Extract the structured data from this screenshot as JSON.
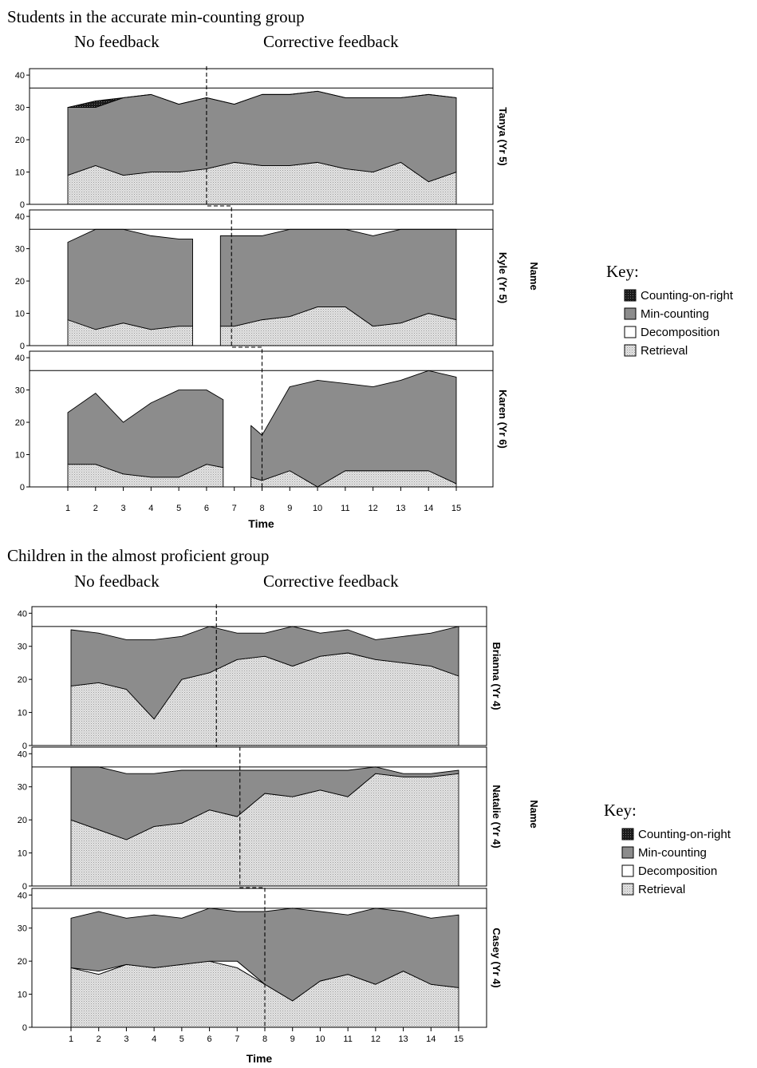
{
  "colors": {
    "counting_on_right": "#1a1a1a",
    "min_counting": "#8c8c8c",
    "decomposition": "#ffffff",
    "retrieval": "#e4e4e4",
    "line": "#000000"
  },
  "chart_data": [
    {
      "type": "area",
      "title": "Students in the accurate min-counting group",
      "phase_labels": [
        "No feedback",
        "Corrective feedback"
      ],
      "xlabel": "Time",
      "facet_label": "Name",
      "x_ticks": [
        1,
        2,
        3,
        4,
        5,
        6,
        7,
        8,
        9,
        10,
        11,
        12,
        13,
        14,
        15
      ],
      "y_ticks": [
        0,
        10,
        20,
        30,
        40
      ],
      "ylim": [
        0,
        42
      ],
      "reference_line": 36,
      "legend_title": "Key:",
      "legend": [
        "Counting-on-right",
        "Min-counting",
        "Decomposition",
        "Retrieval"
      ],
      "panels": [
        {
          "name": "Tanya (Yr 5)",
          "x": [
            1,
            2,
            3,
            4,
            5,
            6,
            7,
            8,
            9,
            10,
            11,
            12,
            13,
            14,
            15
          ],
          "retrieval": [
            9,
            12,
            9,
            10,
            10,
            11,
            13,
            12,
            12,
            13,
            11,
            10,
            13,
            7,
            10
          ],
          "decomposition": [
            0,
            0,
            0,
            0,
            0,
            0,
            0,
            0,
            0,
            0,
            0,
            0,
            0,
            0,
            0
          ],
          "min_counting": [
            21,
            18,
            24,
            24,
            21,
            22,
            18,
            22,
            22,
            22,
            22,
            23,
            20,
            27,
            23
          ],
          "counting_on_right": [
            0,
            2,
            0,
            0,
            0,
            0,
            0,
            0,
            0,
            0,
            0,
            0,
            0,
            0,
            0
          ],
          "phase_change_x": 6.0
        },
        {
          "name": "Kyle (Yr 5)",
          "segments": [
            {
              "x": [
                1,
                2,
                3,
                4,
                5,
                5.5
              ],
              "retrieval": [
                8,
                5,
                7,
                5,
                6,
                6
              ],
              "min_counting": [
                24,
                31,
                29,
                29,
                27,
                27
              ]
            },
            {
              "x": [
                6.5,
                7,
                8,
                9,
                10,
                11,
                12,
                13,
                14,
                15
              ],
              "retrieval": [
                6,
                6,
                8,
                9,
                12,
                12,
                6,
                7,
                10,
                8
              ],
              "min_counting": [
                28,
                28,
                26,
                27,
                24,
                24,
                28,
                29,
                26,
                28
              ]
            }
          ],
          "phase_change_x": 6.9
        },
        {
          "name": "Karen (Yr 6)",
          "segments": [
            {
              "x": [
                1,
                2,
                3,
                4,
                5,
                6,
                6.6
              ],
              "retrieval": [
                7,
                7,
                4,
                3,
                3,
                7,
                6
              ],
              "min_counting": [
                16,
                22,
                16,
                23,
                27,
                23,
                21
              ]
            },
            {
              "x": [
                7.6,
                8,
                9,
                10,
                11,
                12,
                13,
                14,
                15
              ],
              "retrieval": [
                3,
                2,
                5,
                0,
                5,
                5,
                5,
                5,
                1
              ],
              "min_counting": [
                16,
                14,
                26,
                33,
                27,
                26,
                28,
                31,
                33
              ]
            }
          ],
          "phase_change_x": 8.0
        }
      ]
    },
    {
      "type": "area",
      "title": "Children in the almost proficient group",
      "phase_labels": [
        "No feedback",
        "Corrective feedback"
      ],
      "xlabel": "Time",
      "facet_label": "Name",
      "x_ticks": [
        1,
        2,
        3,
        4,
        5,
        6,
        7,
        8,
        9,
        10,
        11,
        12,
        13,
        14,
        15
      ],
      "y_ticks": [
        0,
        10,
        20,
        30,
        40
      ],
      "ylim": [
        0,
        42
      ],
      "reference_line": 36,
      "legend_title": "Key:",
      "legend": [
        "Counting-on-right",
        "Min-counting",
        "Decomposition",
        "Retrieval"
      ],
      "panels": [
        {
          "name": "Brianna (Yr 4)",
          "x": [
            1,
            2,
            3,
            4,
            5,
            6,
            7,
            8,
            9,
            10,
            11,
            12,
            13,
            14,
            15
          ],
          "retrieval": [
            18,
            19,
            17,
            8,
            20,
            22,
            26,
            27,
            24,
            27,
            28,
            26,
            25,
            24,
            21
          ],
          "decomposition": [
            0,
            0,
            0,
            0,
            0,
            0,
            0,
            0,
            0,
            0,
            0,
            0,
            0,
            0,
            0
          ],
          "min_counting": [
            17,
            15,
            15,
            24,
            13,
            14,
            8,
            7,
            12,
            7,
            7,
            6,
            8,
            10,
            15
          ],
          "counting_on_right": [
            0,
            0,
            0,
            0,
            0,
            0,
            0,
            0,
            0,
            0,
            0,
            0,
            0,
            0,
            0
          ],
          "phase_change_x": 6.25
        },
        {
          "name": "Natalie (Yr 4)",
          "x": [
            1,
            2,
            3,
            4,
            5,
            6,
            7,
            8,
            9,
            10,
            11,
            12,
            13,
            14,
            15
          ],
          "retrieval": [
            20,
            17,
            14,
            18,
            19,
            23,
            21,
            28,
            27,
            29,
            27,
            34,
            33,
            33,
            34
          ],
          "decomposition": [
            0,
            0,
            0,
            0,
            0,
            0,
            0,
            0,
            0,
            0,
            0,
            0,
            0,
            0,
            0
          ],
          "min_counting": [
            16,
            19,
            20,
            16,
            16,
            12,
            14,
            7,
            8,
            6,
            8,
            2,
            1,
            1,
            1
          ],
          "counting_on_right": [
            0,
            0,
            0,
            0,
            0,
            0,
            0,
            0,
            0,
            0,
            0,
            0,
            0,
            0,
            0
          ],
          "phase_change_x": 7.1
        },
        {
          "name": "Casey (Yr 4)",
          "x": [
            1,
            2,
            3,
            4,
            5,
            6,
            7,
            8,
            9,
            10,
            11,
            12,
            13,
            14,
            15
          ],
          "retrieval": [
            18,
            16,
            19,
            18,
            19,
            20,
            18,
            13,
            8,
            14,
            16,
            13,
            17,
            13,
            12
          ],
          "decomposition": [
            0,
            1,
            0,
            0,
            0,
            0,
            2,
            0,
            0,
            0,
            0,
            0,
            0,
            0,
            0
          ],
          "min_counting": [
            15,
            18,
            14,
            16,
            14,
            16,
            15,
            22,
            28,
            21,
            18,
            23,
            18,
            20,
            22
          ],
          "counting_on_right": [
            0,
            0,
            0,
            0,
            0,
            0,
            0,
            0,
            0,
            0,
            0,
            0,
            0,
            0,
            0
          ],
          "phase_change_x": 8.0
        }
      ]
    }
  ]
}
